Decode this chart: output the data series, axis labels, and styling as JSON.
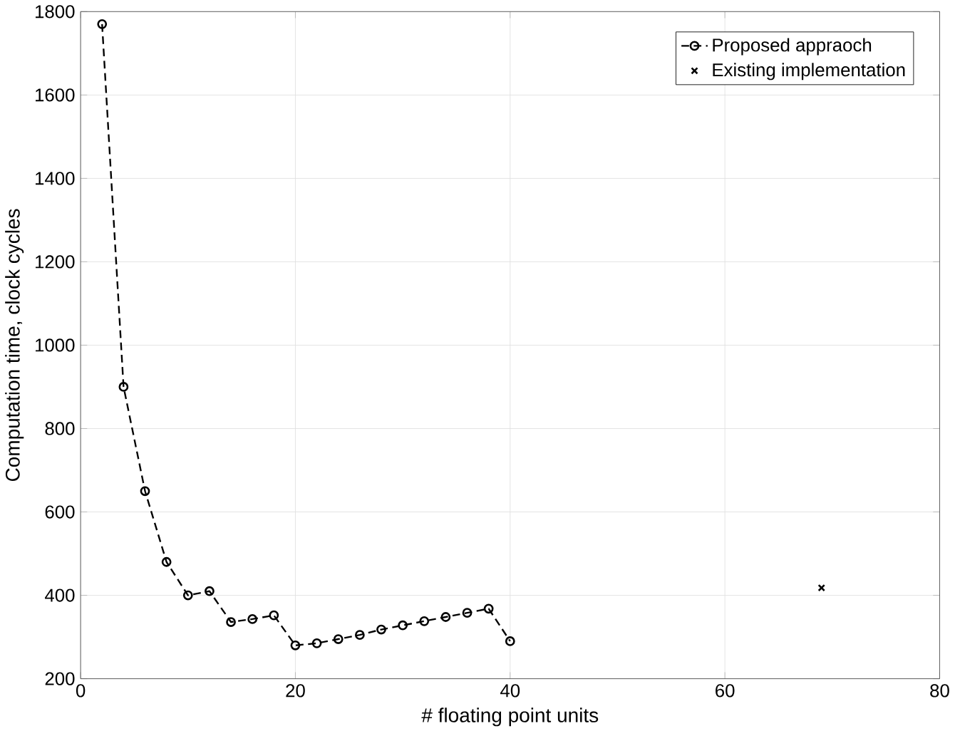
{
  "chart_data": {
    "type": "line",
    "xlabel": "# floating point units",
    "ylabel": "Computation time, clock cycles",
    "xlim": [
      0,
      80
    ],
    "xticks": [
      0,
      20,
      40,
      60,
      80
    ],
    "ylim": [
      200,
      1800
    ],
    "yticks": [
      200,
      400,
      600,
      800,
      1000,
      1200,
      1400,
      1600,
      1800
    ],
    "grid": true,
    "legend": "top right",
    "series": [
      {
        "name": "Proposed appraoch",
        "color": "#000000",
        "marker": "circle",
        "line_style": "dashed",
        "x": [
          2,
          4,
          6,
          8,
          10,
          12,
          14,
          16,
          18,
          20,
          22,
          24,
          26,
          28,
          30,
          32,
          34,
          36,
          38,
          40
        ],
        "values": [
          1770,
          900,
          650,
          480,
          400,
          410,
          336,
          343,
          352,
          280,
          285,
          295,
          305,
          318,
          328,
          338,
          348,
          358,
          368,
          290
        ]
      },
      {
        "name": "Existing implementation",
        "type": "scatter",
        "color": "#000000",
        "marker": "cross",
        "x": [
          69
        ],
        "values": [
          418
        ]
      }
    ]
  }
}
